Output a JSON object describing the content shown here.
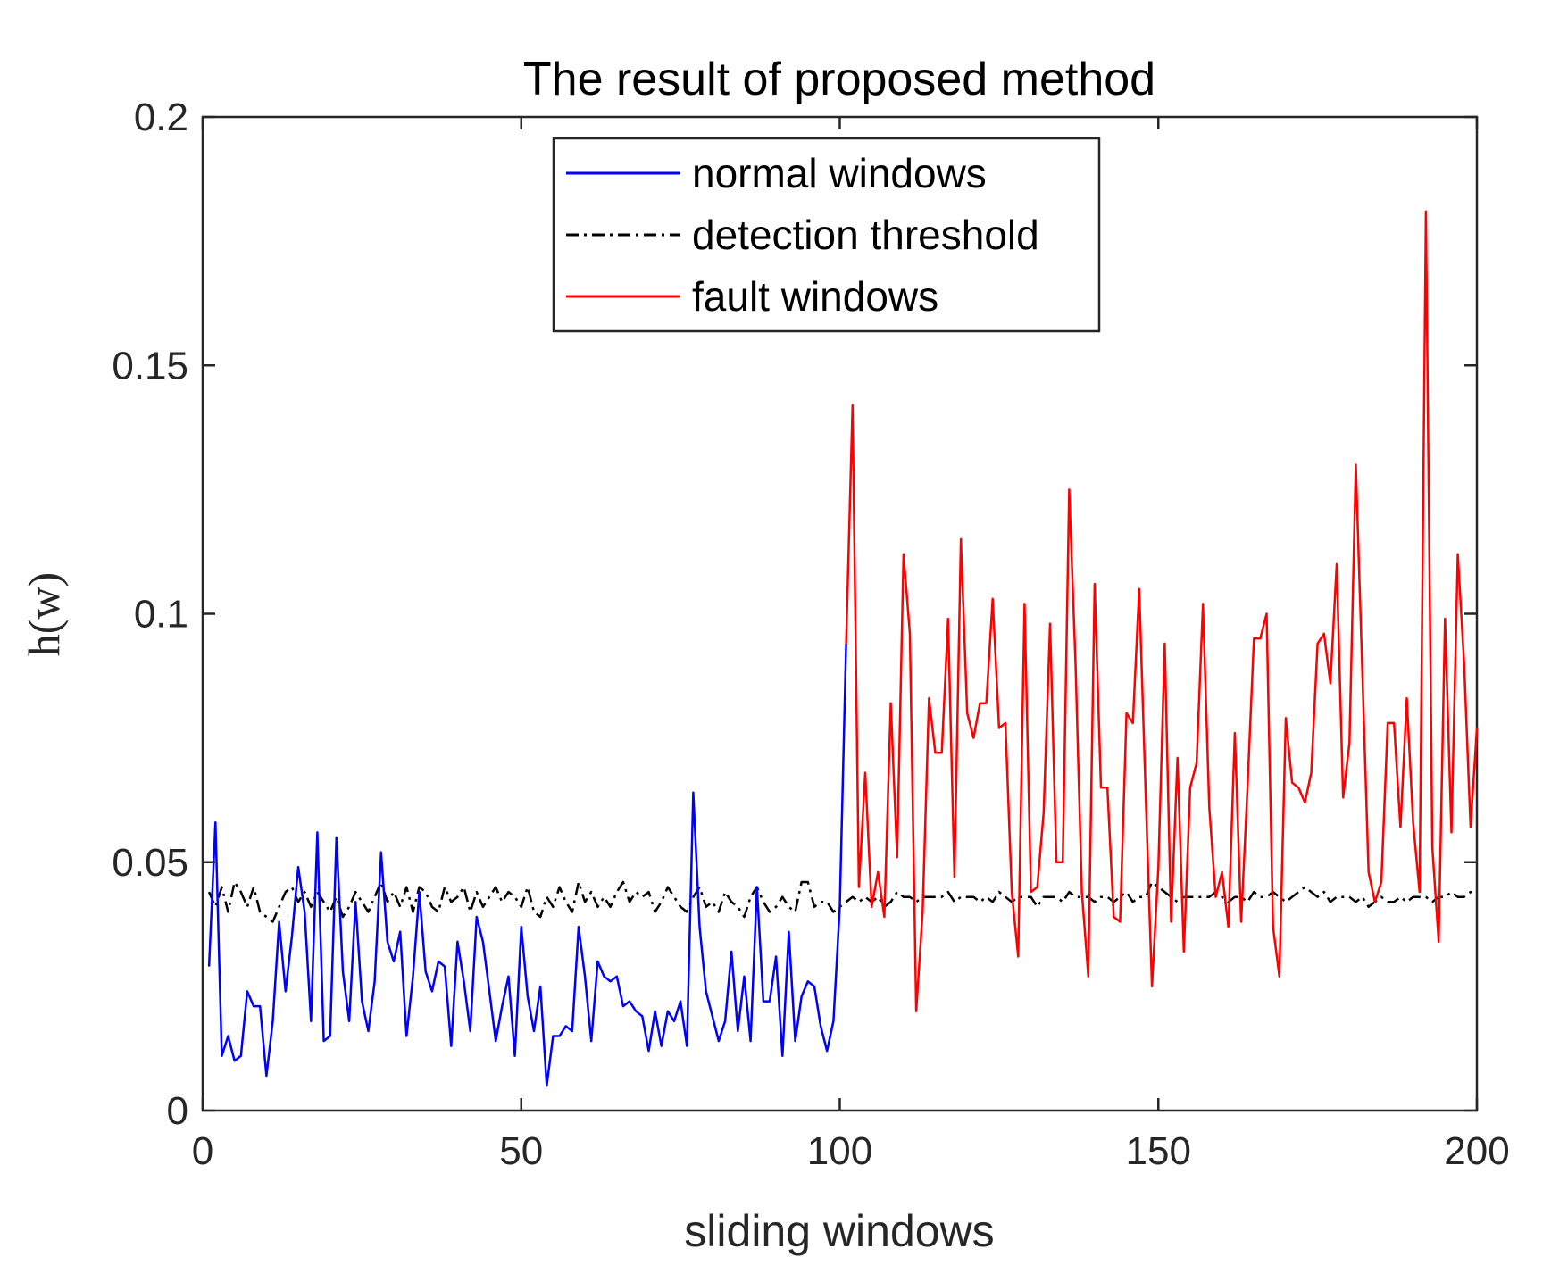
{
  "chart_data": {
    "type": "line",
    "title": "The result of proposed method",
    "xlabel": "sliding windows",
    "ylabel": "h(w)",
    "xlim": [
      0,
      200
    ],
    "ylim": [
      0,
      0.2
    ],
    "xticks": [
      0,
      50,
      100,
      150,
      200
    ],
    "yticks": [
      0,
      0.05,
      0.1,
      0.15,
      0.2
    ],
    "xtick_labels": [
      "0",
      "50",
      "100",
      "150",
      "200"
    ],
    "ytick_labels": [
      "0",
      "0.05",
      "0.1",
      "0.15",
      "0.2"
    ],
    "legend_position": "top-center",
    "grid": false,
    "series": [
      {
        "name": "normal windows",
        "color": "#0000ff",
        "style": "solid",
        "x": [
          1,
          2,
          3,
          4,
          5,
          6,
          7,
          8,
          9,
          10,
          11,
          12,
          13,
          14,
          15,
          16,
          17,
          18,
          19,
          20,
          21,
          22,
          23,
          24,
          25,
          26,
          27,
          28,
          29,
          30,
          31,
          32,
          33,
          34,
          35,
          36,
          37,
          38,
          39,
          40,
          41,
          42,
          43,
          44,
          45,
          46,
          47,
          48,
          49,
          50,
          51,
          52,
          53,
          54,
          55,
          56,
          57,
          58,
          59,
          60,
          61,
          62,
          63,
          64,
          65,
          66,
          67,
          68,
          69,
          70,
          71,
          72,
          73,
          74,
          75,
          76,
          77,
          78,
          79,
          80,
          81,
          82,
          83,
          84,
          85,
          86,
          87,
          88,
          89,
          90,
          91,
          92,
          93,
          94,
          95,
          96,
          97,
          98,
          99,
          100,
          101
        ],
        "y": [
          0.029,
          0.058,
          0.011,
          0.015,
          0.01,
          0.011,
          0.024,
          0.021,
          0.021,
          0.007,
          0.018,
          0.038,
          0.024,
          0.035,
          0.049,
          0.04,
          0.018,
          0.056,
          0.014,
          0.015,
          0.055,
          0.028,
          0.018,
          0.042,
          0.022,
          0.016,
          0.026,
          0.052,
          0.034,
          0.03,
          0.036,
          0.015,
          0.027,
          0.044,
          0.028,
          0.024,
          0.03,
          0.029,
          0.013,
          0.034,
          0.026,
          0.016,
          0.039,
          0.034,
          0.024,
          0.014,
          0.021,
          0.027,
          0.011,
          0.037,
          0.023,
          0.016,
          0.025,
          0.005,
          0.015,
          0.015,
          0.017,
          0.016,
          0.037,
          0.027,
          0.014,
          0.03,
          0.027,
          0.026,
          0.027,
          0.021,
          0.022,
          0.02,
          0.019,
          0.012,
          0.02,
          0.013,
          0.02,
          0.018,
          0.022,
          0.013,
          0.064,
          0.037,
          0.024,
          0.019,
          0.014,
          0.018,
          0.032,
          0.016,
          0.027,
          0.014,
          0.045,
          0.022,
          0.022,
          0.031,
          0.011,
          0.036,
          0.014,
          0.023,
          0.026,
          0.025,
          0.017,
          0.012,
          0.018,
          0.041,
          0.094
        ]
      },
      {
        "name": "detection threshold",
        "color": "#000000",
        "style": "dashdot",
        "x": [
          1,
          2,
          3,
          4,
          5,
          6,
          7,
          8,
          9,
          10,
          11,
          12,
          13,
          14,
          15,
          16,
          17,
          18,
          19,
          20,
          21,
          22,
          23,
          24,
          25,
          26,
          27,
          28,
          29,
          30,
          31,
          32,
          33,
          34,
          35,
          36,
          37,
          38,
          39,
          40,
          41,
          42,
          43,
          44,
          45,
          46,
          47,
          48,
          49,
          50,
          51,
          52,
          53,
          54,
          55,
          56,
          57,
          58,
          59,
          60,
          61,
          62,
          63,
          64,
          65,
          66,
          67,
          68,
          69,
          70,
          71,
          72,
          73,
          74,
          75,
          76,
          77,
          78,
          79,
          80,
          81,
          82,
          83,
          84,
          85,
          86,
          87,
          88,
          89,
          90,
          91,
          92,
          93,
          94,
          95,
          96,
          97,
          98,
          99,
          100,
          101,
          102,
          103,
          104,
          105,
          106,
          107,
          108,
          109,
          110,
          111,
          112,
          113,
          114,
          115,
          116,
          117,
          118,
          119,
          120,
          121,
          122,
          123,
          124,
          125,
          126,
          127,
          128,
          129,
          130,
          131,
          132,
          133,
          134,
          135,
          136,
          137,
          138,
          139,
          140,
          141,
          142,
          143,
          144,
          145,
          146,
          147,
          148,
          149,
          150,
          151,
          152,
          153,
          154,
          155,
          156,
          157,
          158,
          159,
          160,
          161,
          162,
          163,
          164,
          165,
          166,
          167,
          168,
          169,
          170,
          171,
          172,
          173,
          174,
          175,
          176,
          177,
          178,
          179,
          180,
          181,
          182,
          183,
          184,
          185,
          186,
          187,
          188,
          189,
          190,
          191,
          192,
          193,
          194,
          195,
          196,
          197,
          198,
          199,
          200
        ],
        "y": [
          0.044,
          0.041,
          0.045,
          0.04,
          0.046,
          0.044,
          0.041,
          0.045,
          0.04,
          0.039,
          0.038,
          0.041,
          0.044,
          0.045,
          0.042,
          0.044,
          0.041,
          0.044,
          0.042,
          0.04,
          0.043,
          0.039,
          0.041,
          0.044,
          0.042,
          0.04,
          0.043,
          0.046,
          0.042,
          0.044,
          0.041,
          0.045,
          0.04,
          0.045,
          0.044,
          0.041,
          0.04,
          0.045,
          0.042,
          0.043,
          0.045,
          0.04,
          0.044,
          0.041,
          0.043,
          0.045,
          0.042,
          0.044,
          0.043,
          0.041,
          0.045,
          0.04,
          0.039,
          0.043,
          0.041,
          0.045,
          0.042,
          0.04,
          0.046,
          0.042,
          0.044,
          0.041,
          0.043,
          0.041,
          0.044,
          0.046,
          0.042,
          0.044,
          0.043,
          0.044,
          0.04,
          0.042,
          0.045,
          0.043,
          0.041,
          0.04,
          0.043,
          0.045,
          0.041,
          0.042,
          0.04,
          0.044,
          0.042,
          0.041,
          0.039,
          0.043,
          0.045,
          0.042,
          0.04,
          0.041,
          0.043,
          0.041,
          0.04,
          0.046,
          0.046,
          0.041,
          0.042,
          0.042,
          0.04,
          0.041,
          0.042,
          0.043,
          0.042,
          0.043,
          0.042,
          0.043,
          0.041,
          0.042,
          0.044,
          0.043,
          0.043,
          0.042,
          0.043,
          0.043,
          0.043,
          0.043,
          0.044,
          0.042,
          0.043,
          0.043,
          0.043,
          0.042,
          0.043,
          0.042,
          0.044,
          0.043,
          0.042,
          0.043,
          0.043,
          0.043,
          0.041,
          0.043,
          0.043,
          0.043,
          0.042,
          0.044,
          0.043,
          0.043,
          0.043,
          0.042,
          0.043,
          0.043,
          0.042,
          0.043,
          0.044,
          0.042,
          0.043,
          0.043,
          0.046,
          0.045,
          0.044,
          0.043,
          0.042,
          0.043,
          0.043,
          0.043,
          0.043,
          0.043,
          0.044,
          0.043,
          0.042,
          0.043,
          0.043,
          0.042,
          0.044,
          0.043,
          0.043,
          0.044,
          0.043,
          0.042,
          0.043,
          0.044,
          0.045,
          0.044,
          0.043,
          0.044,
          0.042,
          0.043,
          0.043,
          0.043,
          0.042,
          0.043,
          0.041,
          0.042,
          0.043,
          0.042,
          0.042,
          0.043,
          0.042,
          0.043,
          0.043,
          0.043,
          0.042,
          0.043,
          0.043,
          0.044,
          0.043,
          0.043,
          0.044,
          0.044
        ]
      },
      {
        "name": "fault windows",
        "color": "#ff0000",
        "style": "solid",
        "x": [
          101,
          102,
          103,
          104,
          105,
          106,
          107,
          108,
          109,
          110,
          111,
          112,
          113,
          114,
          115,
          116,
          117,
          118,
          119,
          120,
          121,
          122,
          123,
          124,
          125,
          126,
          127,
          128,
          129,
          130,
          131,
          132,
          133,
          134,
          135,
          136,
          137,
          138,
          139,
          140,
          141,
          142,
          143,
          144,
          145,
          146,
          147,
          148,
          149,
          150,
          151,
          152,
          153,
          154,
          155,
          156,
          157,
          158,
          159,
          160,
          161,
          162,
          163,
          164,
          165,
          166,
          167,
          168,
          169,
          170,
          171,
          172,
          173,
          174,
          175,
          176,
          177,
          178,
          179,
          180,
          181,
          182,
          183,
          184,
          185,
          186,
          187,
          188,
          189,
          190,
          191,
          192,
          193,
          194,
          195,
          196,
          197,
          198,
          199,
          200
        ],
        "y": [
          0.094,
          0.142,
          0.045,
          0.068,
          0.041,
          0.048,
          0.039,
          0.082,
          0.051,
          0.112,
          0.096,
          0.02,
          0.04,
          0.083,
          0.072,
          0.072,
          0.099,
          0.047,
          0.115,
          0.08,
          0.075,
          0.082,
          0.082,
          0.103,
          0.077,
          0.078,
          0.044,
          0.031,
          0.102,
          0.044,
          0.045,
          0.06,
          0.098,
          0.05,
          0.05,
          0.125,
          0.09,
          0.044,
          0.027,
          0.106,
          0.065,
          0.065,
          0.039,
          0.038,
          0.08,
          0.078,
          0.105,
          0.064,
          0.025,
          0.049,
          0.094,
          0.038,
          0.071,
          0.032,
          0.065,
          0.07,
          0.102,
          0.061,
          0.043,
          0.048,
          0.037,
          0.076,
          0.038,
          0.065,
          0.095,
          0.095,
          0.1,
          0.037,
          0.027,
          0.079,
          0.066,
          0.065,
          0.062,
          0.068,
          0.094,
          0.096,
          0.086,
          0.11,
          0.063,
          0.074,
          0.13,
          0.089,
          0.048,
          0.042,
          0.046,
          0.078,
          0.078,
          0.057,
          0.083,
          0.058,
          0.044,
          0.181,
          0.053,
          0.034,
          0.099,
          0.056,
          0.112,
          0.09,
          0.057,
          0.077
        ]
      }
    ]
  }
}
